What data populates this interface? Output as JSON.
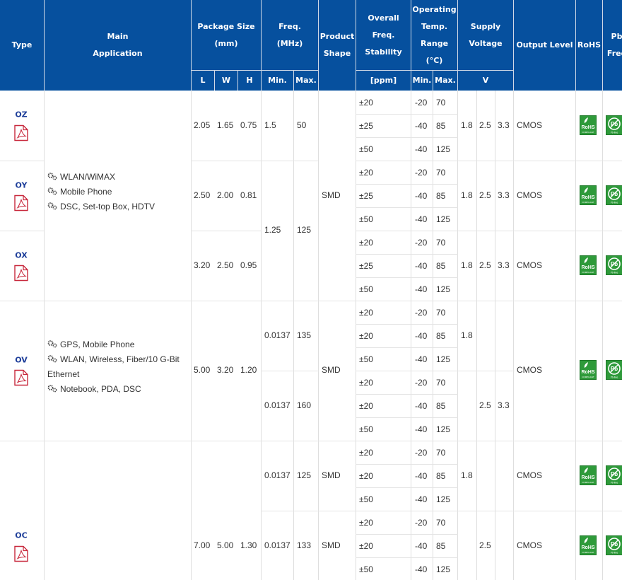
{
  "header": {
    "type": "Type",
    "main_application": [
      "Main",
      "Application"
    ],
    "package_size": [
      "Package Size",
      "(mm)"
    ],
    "freq": [
      "Freq.",
      "(MHz)"
    ],
    "product_shape": [
      "Product",
      "Shape"
    ],
    "overall_stability": [
      "Overall",
      "Freq.",
      "Stability"
    ],
    "operating_temp": [
      "Operating",
      "Temp.",
      "Range",
      "(°C)"
    ],
    "supply_voltage": [
      "Supply",
      "Voltage"
    ],
    "output_level": "Output Level",
    "rohs": "RoHS",
    "pb_free": [
      "Pb",
      "Free"
    ],
    "sub": {
      "l": "L",
      "w": "W",
      "h": "H",
      "min": "Min.",
      "max": "Max.",
      "ppm": "[ppm]",
      "temp_min": "Min.",
      "temp_max": "Max.",
      "v": "V"
    }
  },
  "applications": {
    "group1": [
      "WLAN/WiMAX",
      "Mobile Phone",
      "DSC, Set-top Box, HDTV"
    ],
    "group2": [
      "GPS, Mobile Phone",
      "WLAN, Wireless, Fiber/10 G-Bit",
      "Ethernet",
      "Notebook, PDA, DSC"
    ]
  },
  "products": [
    {
      "type": "OZ",
      "l": "2.05",
      "w": "1.65",
      "h": "0.75",
      "fmin": "1.5",
      "fmax": "50",
      "v1": "1.8",
      "v2": "2.5",
      "v3": "3.3",
      "output": "CMOS"
    },
    {
      "type": "OY",
      "l": "2.50",
      "w": "2.00",
      "h": "0.81",
      "shape": "SMD",
      "v1": "1.8",
      "v2": "2.5",
      "v3": "3.3",
      "output": "CMOS"
    },
    {
      "type": "OX",
      "l": "3.20",
      "w": "2.50",
      "h": "0.95",
      "v1": "1.8",
      "v2": "2.5",
      "v3": "3.3",
      "output": "CMOS"
    },
    {
      "type": "OV",
      "l": "5.00",
      "w": "3.20",
      "h": "1.20",
      "shape": "SMD",
      "output": "CMOS"
    },
    {
      "type": "OC",
      "l": "7.00",
      "w": "5.00",
      "h": "1.30",
      "output": "CMOS"
    }
  ],
  "shared_freq": {
    "min": "1.25",
    "max": "125"
  },
  "ov_sub": [
    {
      "fmin": "0.0137",
      "fmax": "135",
      "v1": "1.8"
    },
    {
      "fmin": "0.0137",
      "fmax": "160",
      "v2": "2.5",
      "v3": "3.3"
    }
  ],
  "oc_sub": [
    {
      "fmin": "0.0137",
      "fmax": "125",
      "shape": "SMD",
      "v1": "1.8",
      "output": "CMOS"
    },
    {
      "fmin": "0.0137",
      "fmax": "133",
      "shape": "SMD",
      "v2": "2.5",
      "output": "CMOS"
    }
  ],
  "rows": [
    {
      "stab": "±20",
      "tmin": "-20",
      "tmax": "70"
    },
    {
      "stab": "±25",
      "tmin": "-40",
      "tmax": "85"
    },
    {
      "stab": "±50",
      "tmin": "-40",
      "tmax": "125"
    },
    {
      "stab": "±20",
      "tmin": "-20",
      "tmax": "70"
    },
    {
      "stab": "±25",
      "tmin": "-40",
      "tmax": "85"
    },
    {
      "stab": "±50",
      "tmin": "-40",
      "tmax": "125"
    },
    {
      "stab": "±20",
      "tmin": "-20",
      "tmax": "70"
    },
    {
      "stab": "±25",
      "tmin": "-40",
      "tmax": "85"
    },
    {
      "stab": "±50",
      "tmin": "-40",
      "tmax": "125"
    },
    {
      "stab": "±20",
      "tmin": "-20",
      "tmax": "70"
    },
    {
      "stab": "±20",
      "tmin": "-40",
      "tmax": "85"
    },
    {
      "stab": "±50",
      "tmin": "-40",
      "tmax": "125"
    },
    {
      "stab": "±20",
      "tmin": "-20",
      "tmax": "70"
    },
    {
      "stab": "±20",
      "tmin": "-40",
      "tmax": "85"
    },
    {
      "stab": "±50",
      "tmin": "-40",
      "tmax": "125"
    },
    {
      "stab": "±20",
      "tmin": "-20",
      "tmax": "70"
    },
    {
      "stab": "±20",
      "tmin": "-40",
      "tmax": "85"
    },
    {
      "stab": "±50",
      "tmin": "-40",
      "tmax": "125"
    },
    {
      "stab": "±20",
      "tmin": "-20",
      "tmax": "70"
    },
    {
      "stab": "±20",
      "tmin": "-40",
      "tmax": "85"
    },
    {
      "stab": "±50",
      "tmin": "-40",
      "tmax": "125"
    }
  ],
  "icons": {
    "pdf": "pdf-document-icon",
    "gear": "gears-icon",
    "rohs": "rohs-compliant-badge",
    "pb": "pb-free-badge"
  },
  "badges": {
    "rohs_text": "RoHS",
    "rohs_sub": "COMPLIANT",
    "pb_text": "Pb",
    "pb_sub": "Pb-free"
  },
  "colors": {
    "header_bg": "#06509e",
    "type_link": "#1f3f9a",
    "pdf_red": "#c8283c",
    "badge_green": "#2e9a3a"
  }
}
